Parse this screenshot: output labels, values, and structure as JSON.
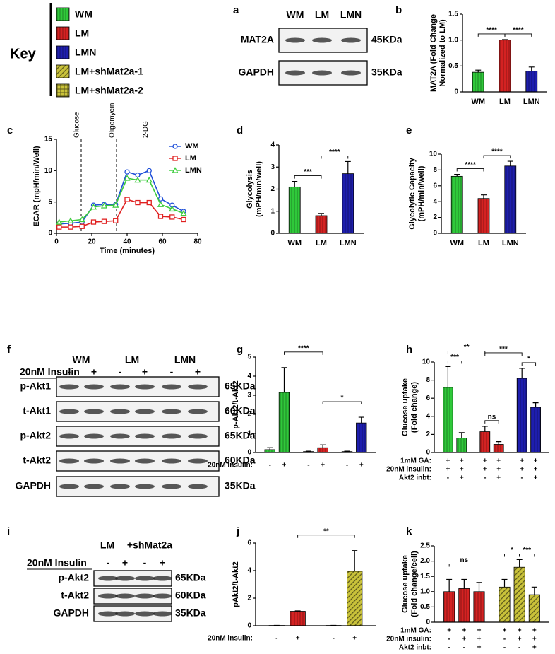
{
  "key": {
    "title": "Key",
    "items": [
      {
        "label": "WM",
        "color": "#2fc93a",
        "hatch": "vertical"
      },
      {
        "label": "LM",
        "color": "#d42222",
        "hatch": "vertical"
      },
      {
        "label": "LMN",
        "color": "#1e1eae",
        "hatch": "vertical"
      },
      {
        "label": "LM+shMat2a-1",
        "color": "#c9c23a",
        "hatch": "diagonal"
      },
      {
        "label": "LM+shMat2a-2",
        "color": "#c9c23a",
        "hatch": "grid"
      }
    ]
  },
  "blots": [
    {
      "panel": "a",
      "lanes": [
        "WM",
        "LM",
        "LMN"
      ],
      "rows": [
        {
          "label": "MAT2A",
          "size": "45KDa"
        },
        {
          "label": "GAPDH",
          "size": "35KDa"
        }
      ]
    },
    {
      "panel": "f",
      "lanes": [
        "WM",
        "LM",
        "LMN"
      ],
      "treatment": "20nM Insulin",
      "signs": [
        "-",
        "+",
        "-",
        "+",
        "-",
        "+"
      ],
      "rows": [
        {
          "label": "p-Akt1",
          "size": "65KDa"
        },
        {
          "label": "t-Akt1",
          "size": "60KDa"
        },
        {
          "label": "p-Akt2",
          "size": "65KDa"
        },
        {
          "label": "t-Akt2",
          "size": "60KDa"
        },
        {
          "label": "GAPDH",
          "size": "35KDa"
        }
      ]
    },
    {
      "panel": "i",
      "lanes": [
        "LM",
        "+shMat2a"
      ],
      "treatment": "20nM Insulin",
      "signs": [
        "-",
        "+",
        "-",
        "+"
      ],
      "rows": [
        {
          "label": "p-Akt2",
          "size": "65KDa"
        },
        {
          "label": "t-Akt2",
          "size": "60KDa"
        },
        {
          "label": "GAPDH",
          "size": "35KDa"
        }
      ]
    }
  ],
  "chart_data": [
    {
      "panel": "b",
      "type": "bar",
      "ylabel": [
        "MAT2A (Fold Change",
        "Normalized to LM)"
      ],
      "categories": [
        "WM",
        "LM",
        "LMN"
      ],
      "values": [
        0.38,
        1.0,
        0.4
      ],
      "errors": [
        0.04,
        0.01,
        0.08
      ],
      "colors": [
        "#2fc93a",
        "#d42222",
        "#1e1eae"
      ],
      "hatches": [
        "vertical",
        "vertical",
        "vertical"
      ],
      "ylim": [
        0,
        1.5
      ],
      "yticks": [
        0,
        0.5,
        {
          "value": 1,
          "label": "1.0"
        },
        1.5
      ],
      "annotations": [
        {
          "text": "****",
          "from": 0,
          "to": 1
        },
        {
          "text": "****",
          "from": 1,
          "to": 2
        }
      ]
    },
    {
      "panel": "c",
      "type": "line",
      "xlabel": "Time (minutes)",
      "ylabel": "ECAR (mpH/min/Well)",
      "x": [
        1.5,
        8,
        14.5,
        21,
        27,
        33.5,
        40,
        46,
        52.5,
        59,
        65.5,
        72
      ],
      "series": [
        {
          "name": "WM",
          "color": "#1f4fd8",
          "marker": "circle",
          "values": [
            1.5,
            1.6,
            1.8,
            4.5,
            4.6,
            4.6,
            9.8,
            9.3,
            10.0,
            5.5,
            4.5,
            3.5
          ]
        },
        {
          "name": "LM",
          "color": "#e02020",
          "marker": "square",
          "values": [
            1.0,
            1.0,
            1.1,
            1.8,
            1.9,
            2.0,
            5.4,
            4.9,
            4.9,
            2.7,
            2.6,
            2.2
          ]
        },
        {
          "name": "LMN",
          "color": "#3dcc3d",
          "marker": "triangle",
          "values": [
            1.8,
            2.0,
            2.2,
            4.2,
            4.4,
            4.5,
            8.8,
            8.5,
            8.5,
            4.6,
            3.9,
            3.2
          ]
        }
      ],
      "events": [
        {
          "label": "Glucose",
          "x": 14
        },
        {
          "label": "Oligomycin",
          "x": 34
        },
        {
          "label": "2-DG",
          "x": 53
        }
      ],
      "xlim": [
        0,
        80
      ],
      "xticks": [
        0,
        20,
        40,
        60,
        80
      ],
      "ylim": [
        0,
        15
      ],
      "yticks": [
        0,
        5,
        10,
        15
      ]
    },
    {
      "panel": "d",
      "type": "bar",
      "ylabel": [
        "Glycolysis",
        "(mPH/min/well)"
      ],
      "categories": [
        "WM",
        "LM",
        "LMN"
      ],
      "values": [
        2.1,
        0.8,
        2.7
      ],
      "errors": [
        0.25,
        0.1,
        0.55
      ],
      "colors": [
        "#2fc93a",
        "#d42222",
        "#1e1eae"
      ],
      "hatches": [
        "vertical",
        "vertical",
        "vertical"
      ],
      "ylim": [
        0,
        4
      ],
      "yticks": [
        0,
        1,
        2,
        3,
        4
      ],
      "annotations": [
        {
          "text": "***",
          "from": 0,
          "to": 1
        },
        {
          "text": "****",
          "from": 1,
          "to": 2
        }
      ]
    },
    {
      "panel": "e",
      "type": "bar",
      "ylabel": [
        "Glycolytic Capacity",
        "(mPH/min/well)"
      ],
      "categories": [
        "WM",
        "LM",
        "LMN"
      ],
      "values": [
        7.2,
        4.4,
        8.5
      ],
      "errors": [
        0.25,
        0.45,
        0.6
      ],
      "colors": [
        "#2fc93a",
        "#d42222",
        "#1e1eae"
      ],
      "hatches": [
        "vertical",
        "vertical",
        "vertical"
      ],
      "ylim": [
        0,
        10
      ],
      "yticks": [
        0,
        2,
        4,
        6,
        8,
        10
      ],
      "annotations": [
        {
          "text": "****",
          "from": 0,
          "to": 1
        },
        {
          "text": "****",
          "from": 1,
          "to": 2
        }
      ]
    },
    {
      "panel": "g",
      "type": "bar",
      "ylabel": [
        "p-Akt2/t-Akt2"
      ],
      "values": [
        0.15,
        3.15,
        0.05,
        0.25,
        0.05,
        1.55
      ],
      "errors": [
        0.1,
        1.3,
        0.02,
        0.15,
        0.02,
        0.3
      ],
      "colors": [
        "#2fc93a",
        "#2fc93a",
        "#d42222",
        "#d42222",
        "#1e1eae",
        "#1e1eae"
      ],
      "hatches": [
        "vertical",
        "vertical",
        "vertical",
        "vertical",
        "vertical",
        "vertical"
      ],
      "ylim": [
        0,
        5
      ],
      "yticks": [
        0,
        1,
        2,
        3,
        4,
        5
      ],
      "conditions": [
        {
          "label": "20nM insulin:",
          "signs": [
            "-",
            "+",
            "-",
            "+",
            "-",
            "+"
          ]
        }
      ],
      "annotations": [
        {
          "text": "****",
          "from": 1,
          "to": 3
        },
        {
          "text": "*",
          "from": 3,
          "to": 5
        }
      ]
    },
    {
      "panel": "h",
      "type": "bar",
      "ylabel": [
        "Glucose uptake",
        "(Fold change)"
      ],
      "values": [
        7.2,
        1.6,
        2.3,
        0.9,
        8.2,
        5.0
      ],
      "errors": [
        2.3,
        0.6,
        0.6,
        0.3,
        1.1,
        0.5
      ],
      "colors": [
        "#2fc93a",
        "#2fc93a",
        "#d42222",
        "#d42222",
        "#1e1eae",
        "#1e1eae"
      ],
      "hatches": [
        "vertical",
        "vertical",
        "vertical",
        "vertical",
        "vertical",
        "vertical"
      ],
      "ylim": [
        0,
        10
      ],
      "yticks": [
        0,
        2,
        4,
        6,
        8,
        10
      ],
      "conditions": [
        {
          "label": "1mM GA:",
          "signs": [
            "+",
            "+",
            "+",
            "+",
            "+",
            "+"
          ]
        },
        {
          "label": "20nM insulin:",
          "signs": [
            "+",
            "+",
            "+",
            "+",
            "+",
            "+"
          ]
        },
        {
          "label": "Akt2 inbt:",
          "signs": [
            "-",
            "+",
            "-",
            "+",
            "-",
            "+"
          ]
        }
      ],
      "annotations": [
        {
          "text": "***",
          "from": 0,
          "to": 1
        },
        {
          "text": "**",
          "from": 0,
          "to": 2
        },
        {
          "text": "ns",
          "from": 2,
          "to": 3
        },
        {
          "text": "***",
          "from": 2,
          "to": 4
        },
        {
          "text": "*",
          "from": 4,
          "to": 5
        }
      ]
    },
    {
      "panel": "j",
      "type": "bar",
      "ylabel": [
        "pAkt2/t-Akt2"
      ],
      "values": [
        0.02,
        1.05,
        0.02,
        3.95
      ],
      "errors": [
        0.01,
        0.03,
        0.01,
        1.5
      ],
      "colors": [
        "#d42222",
        "#d42222",
        "#c9c23a",
        "#c9c23a"
      ],
      "hatches": [
        "vertical",
        "vertical",
        "diagonal",
        "diagonal"
      ],
      "ylim": [
        0,
        6
      ],
      "yticks": [
        0,
        2,
        4,
        6
      ],
      "conditions": [
        {
          "label": "20nM insulin:",
          "signs": [
            "-",
            "+",
            "-",
            "+"
          ]
        }
      ],
      "annotations": [
        {
          "text": "**",
          "from": 1,
          "to": 3
        }
      ]
    },
    {
      "panel": "k",
      "type": "bar",
      "ylabel": [
        "Glucose uptake",
        "(Fold change/cell)"
      ],
      "values": [
        1.0,
        1.1,
        1.0,
        1.15,
        1.8,
        0.9
      ],
      "errors": [
        0.4,
        0.3,
        0.3,
        0.25,
        0.25,
        0.25
      ],
      "colors": [
        "#d42222",
        "#d42222",
        "#d42222",
        "#c9c23a",
        "#c9c23a",
        "#c9c23a"
      ],
      "hatches": [
        "vertical",
        "vertical",
        "vertical",
        "diagonal",
        "diagonal",
        "diagonal"
      ],
      "ylim": [
        0,
        2.5
      ],
      "yticks": [
        0,
        0.5,
        {
          "value": 1,
          "label": "1.0"
        },
        1.5,
        {
          "value": 2,
          "label": "2.0"
        },
        2.5
      ],
      "conditions": [
        {
          "label": "1mM GA:",
          "signs": [
            "+",
            "+",
            "+",
            "+",
            "+",
            "+"
          ]
        },
        {
          "label": "20nM insulin:",
          "signs": [
            "-",
            "+",
            "+",
            "-",
            "+",
            "+"
          ]
        },
        {
          "label": "Akt2 inbt:",
          "signs": [
            "-",
            "-",
            "+",
            "-",
            "-",
            "+"
          ]
        }
      ],
      "annotations": [
        {
          "text": "ns",
          "from": 0,
          "to": 2
        },
        {
          "text": "*",
          "from": 3,
          "to": 4
        },
        {
          "text": "***",
          "from": 4,
          "to": 5
        }
      ]
    }
  ]
}
